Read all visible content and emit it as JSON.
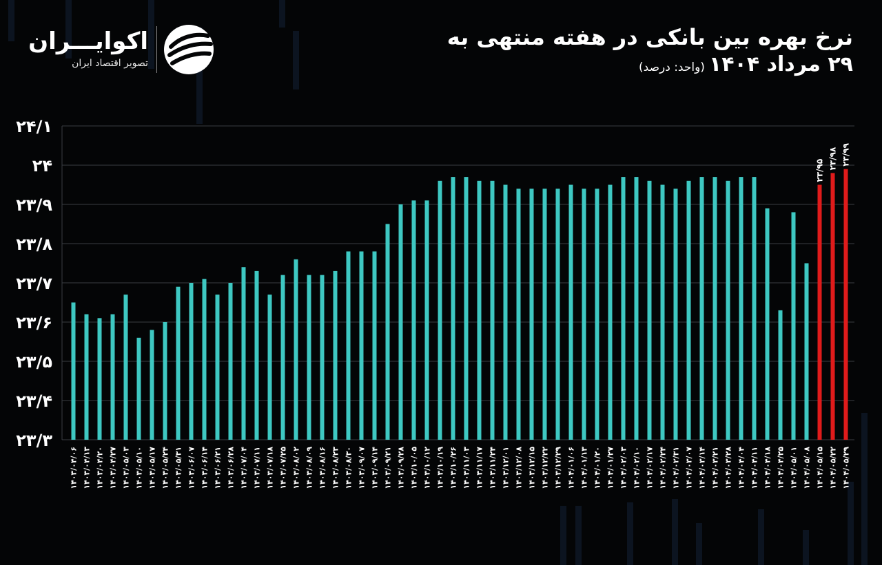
{
  "header": {
    "title_line1": "نرخ بهره بین بانکی در هفته منتهی به",
    "title_line2": "۲۹ مرداد ۱۴۰۴",
    "unit": "(واحد: درصد)"
  },
  "logo": {
    "name": "اکوایـــران",
    "subtitle": "تصویر اقتصاد ایران"
  },
  "colors": {
    "background": "#040506",
    "bar_normal": "#3ec8c2",
    "bar_highlight": "#e01b1b",
    "grid": "#3a3d42",
    "text": "#ffffff"
  },
  "chart_data": {
    "type": "bar",
    "ylim": [
      23.3,
      24.1
    ],
    "y_ticks": [
      {
        "value": 24.1,
        "label": "۲۴/۱"
      },
      {
        "value": 24.0,
        "label": "۲۴"
      },
      {
        "value": 23.9,
        "label": "۲۳/۹"
      },
      {
        "value": 23.8,
        "label": "۲۳/۸"
      },
      {
        "value": 23.7,
        "label": "۲۳/۷"
      },
      {
        "value": 23.6,
        "label": "۲۳/۶"
      },
      {
        "value": 23.5,
        "label": "۲۳/۵"
      },
      {
        "value": 23.4,
        "label": "۲۳/۴"
      },
      {
        "value": 23.3,
        "label": "۲۳/۳"
      }
    ],
    "grid": true,
    "categories": [
      "۱۴۰۳/۰۴/۰۶",
      "۱۴۰۳/۰۴/۱۳",
      "۱۴۰۳/۰۴/۲۰",
      "۱۴۰۳/۰۴/۲۷",
      "۱۴۰۳/۰۵/۰۳",
      "۱۴۰۳/۰۵/۱۰",
      "۱۴۰۳/۰۵/۱۷",
      "۱۴۰۳/۰۵/۲۴",
      "۱۴۰۳/۰۵/۳۱",
      "۱۴۰۳/۰۶/۰۷",
      "۱۴۰۳/۰۶/۱۴",
      "۱۴۰۳/۰۶/۲۱",
      "۱۴۰۳/۰۶/۲۸",
      "۱۴۰۳/۰۷/۰۴",
      "۱۴۰۳/۰۷/۱۱",
      "۱۴۰۳/۰۷/۱۸",
      "۱۴۰۳/۰۷/۲۵",
      "۱۴۰۳/۰۸/۰۲",
      "۱۴۰۳/۰۸/۰۹",
      "۱۴۰۳/۰۸/۱۶",
      "۱۴۰۳/۰۸/۲۳",
      "۱۴۰۳/۰۸/۳۰",
      "۱۴۰۳/۰۹/۰۷",
      "۱۴۰۳/۰۹/۱۴",
      "۱۴۰۳/۰۹/۲۱",
      "۱۴۰۳/۰۹/۲۸",
      "۱۴۰۳/۱۰/۰۵",
      "۱۴۰۳/۱۰/۱۲",
      "۱۴۰۳/۱۰/۱۹",
      "۱۴۰۳/۱۰/۲۶",
      "۱۴۰۳/۱۱/۰۳",
      "۱۴۰۳/۱۱/۱۷",
      "۱۴۰۳/۱۱/۲۴",
      "۱۴۰۳/۱۲/۰۱",
      "۱۴۰۳/۱۲/۰۸",
      "۱۴۰۳/۱۲/۱۵",
      "۱۴۰۳/۱۲/۲۲",
      "۱۴۰۳/۱۲/۲۹",
      "۱۴۰۴/۰۱/۰۶",
      "۱۴۰۴/۰۱/۱۳",
      "۱۴۰۴/۰۱/۲۰",
      "۱۴۰۴/۰۱/۲۷",
      "۱۴۰۴/۰۲/۰۳",
      "۱۴۰۴/۰۲/۱۰",
      "۱۴۰۴/۰۲/۱۷",
      "۱۴۰۴/۰۲/۲۴",
      "۱۴۰۴/۰۲/۳۱",
      "۱۴۰۴/۰۳/۰۷",
      "۱۴۰۴/۰۳/۱۴",
      "۱۴۰۴/۰۳/۲۱",
      "۱۴۰۴/۰۳/۲۸",
      "۱۴۰۴/۰۴/۰۴",
      "۱۴۰۴/۰۴/۱۱",
      "۱۴۰۴/۰۴/۱۸",
      "۱۴۰۴/۰۴/۲۵",
      "۱۴۰۴/۰۵/۰۱",
      "۱۴۰۴/۰۵/۰۸",
      "۱۴۰۴/۰۵/۱۵",
      "۱۴۰۴/۰۵/۲۲",
      "۱۴۰۴/۰۵/۲۹"
    ],
    "values": [
      23.65,
      23.62,
      23.61,
      23.62,
      23.67,
      23.56,
      23.58,
      23.6,
      23.69,
      23.7,
      23.71,
      23.67,
      23.7,
      23.74,
      23.73,
      23.67,
      23.72,
      23.76,
      23.72,
      23.72,
      23.73,
      23.78,
      23.78,
      23.78,
      23.85,
      23.9,
      23.91,
      23.91,
      23.96,
      23.97,
      23.97,
      23.96,
      23.96,
      23.95,
      23.94,
      23.94,
      23.94,
      23.94,
      23.95,
      23.94,
      23.94,
      23.95,
      23.97,
      23.97,
      23.96,
      23.95,
      23.94,
      23.96,
      23.97,
      23.97,
      23.96,
      23.97,
      23.97,
      23.89,
      23.63,
      23.88,
      23.75,
      23.95,
      23.98,
      23.99
    ],
    "highlight_from_index": 57,
    "data_labels": {
      "57": "۲۳/۹۵",
      "58": "۲۳/۹۸",
      "59": "۲۳/۹۹"
    }
  }
}
